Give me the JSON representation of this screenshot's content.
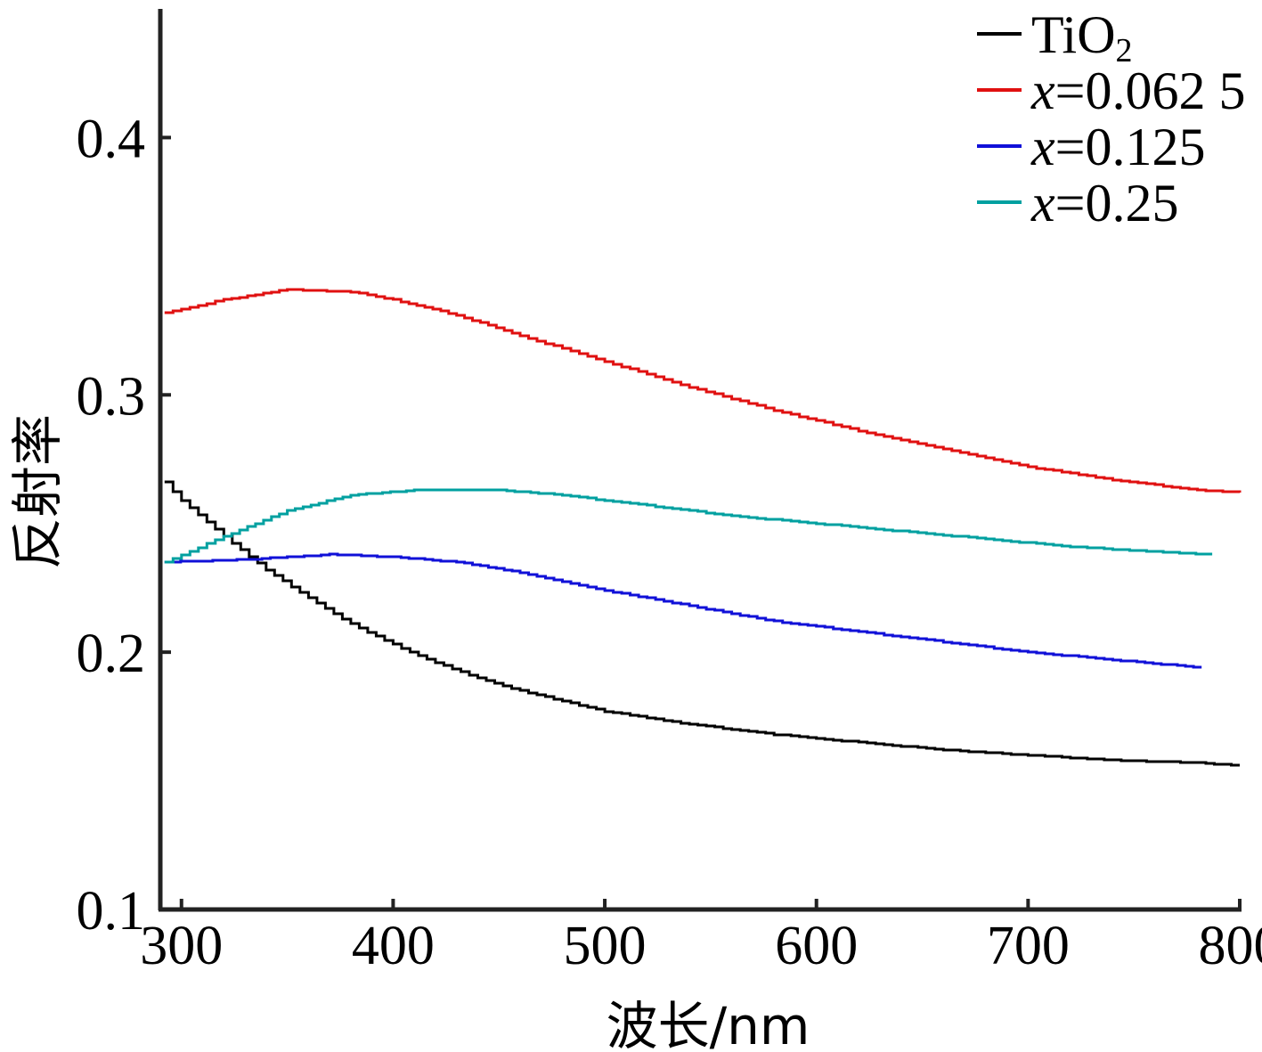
{
  "chart_data": {
    "type": "line",
    "xlabel": "波长/nm",
    "ylabel": "反射率",
    "xlim": [
      290,
      800
    ],
    "ylim": [
      0.1,
      0.45
    ],
    "xticks": [
      "300",
      "400",
      "500",
      "600",
      "700",
      "800"
    ],
    "yticks": [
      "0.1",
      "0.2",
      "0.3",
      "0.4"
    ],
    "legend_position": "top-right",
    "series": [
      {
        "name": "TiO",
        "name_subscript": "2",
        "color": "#000000",
        "x": [
          292,
          300,
          320,
          340,
          360,
          380,
          400,
          420,
          440,
          460,
          480,
          500,
          540,
          580,
          620,
          660,
          700,
          740,
          780,
          800
        ],
        "y": [
          0.266,
          0.259,
          0.245,
          0.232,
          0.221,
          0.211,
          0.203,
          0.196,
          0.19,
          0.185,
          0.181,
          0.177,
          0.172,
          0.168,
          0.165,
          0.162,
          0.16,
          0.158,
          0.157,
          0.156
        ]
      },
      {
        "name": "x=0.062 5",
        "name_italic": "x",
        "name_rest": "=0.062 5",
        "color": "#e01010",
        "x": [
          292,
          320,
          350,
          380,
          400,
          430,
          460,
          500,
          540,
          580,
          620,
          660,
          700,
          740,
          780,
          800
        ],
        "y": [
          0.332,
          0.337,
          0.341,
          0.34,
          0.337,
          0.331,
          0.323,
          0.313,
          0.303,
          0.294,
          0.286,
          0.279,
          0.272,
          0.267,
          0.263,
          0.262
        ]
      },
      {
        "name": "x=0.125",
        "name_italic": "x",
        "name_rest": "=0.125",
        "color": "#1010d8",
        "x": [
          292,
          330,
          370,
          400,
          430,
          460,
          500,
          540,
          580,
          620,
          660,
          700,
          740,
          782
        ],
        "y": [
          0.235,
          0.236,
          0.238,
          0.237,
          0.235,
          0.231,
          0.224,
          0.218,
          0.212,
          0.208,
          0.204,
          0.2,
          0.197,
          0.194
        ]
      },
      {
        "name": "x=0.25",
        "name_italic": "x",
        "name_rest": "=0.25",
        "color": "#00a0a0",
        "x": [
          292,
          320,
          350,
          380,
          410,
          450,
          480,
          520,
          560,
          600,
          640,
          680,
          720,
          760,
          787
        ],
        "y": [
          0.235,
          0.245,
          0.255,
          0.261,
          0.263,
          0.263,
          0.261,
          0.257,
          0.253,
          0.25,
          0.247,
          0.244,
          0.241,
          0.239,
          0.238
        ]
      }
    ]
  }
}
